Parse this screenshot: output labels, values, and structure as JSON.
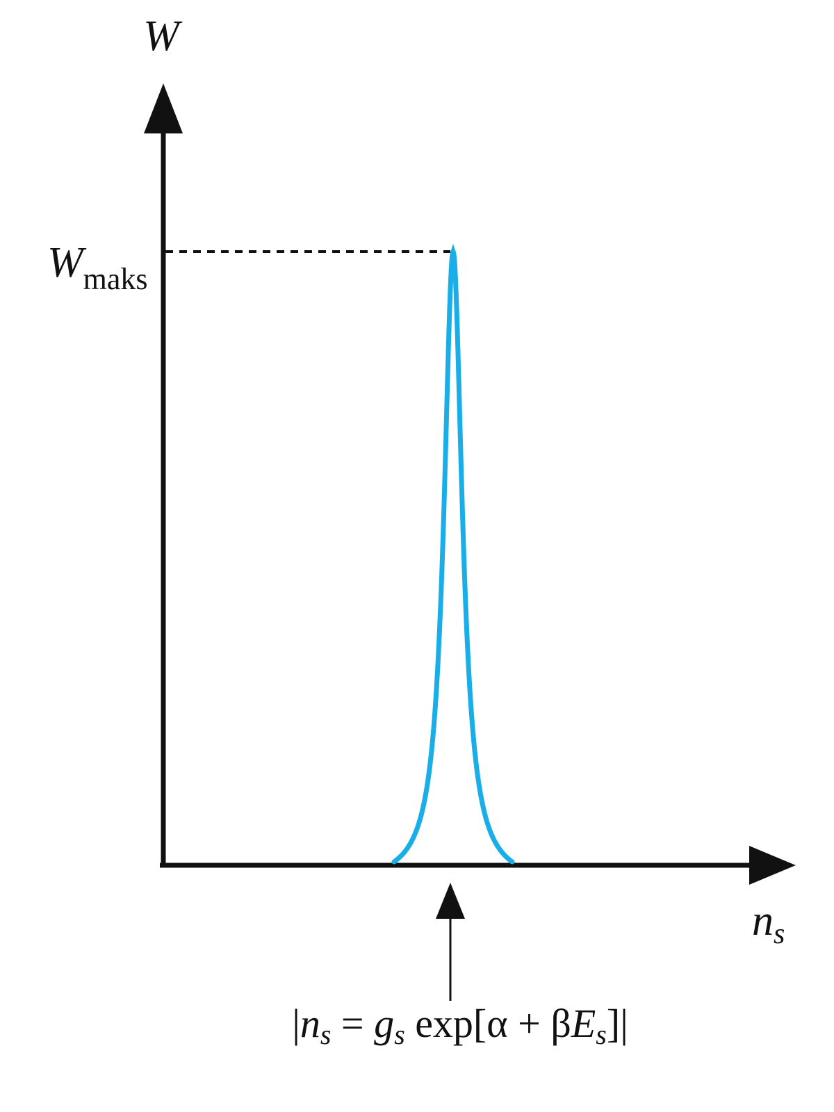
{
  "y_axis_label": "W",
  "x_axis_label": [
    "n",
    "s"
  ],
  "peak_label": [
    "W",
    "maks"
  ],
  "formula": [
    "|",
    "n",
    "s",
    " = ",
    "g",
    "s",
    " exp[α + β",
    "E",
    "s",
    "]|"
  ]
}
